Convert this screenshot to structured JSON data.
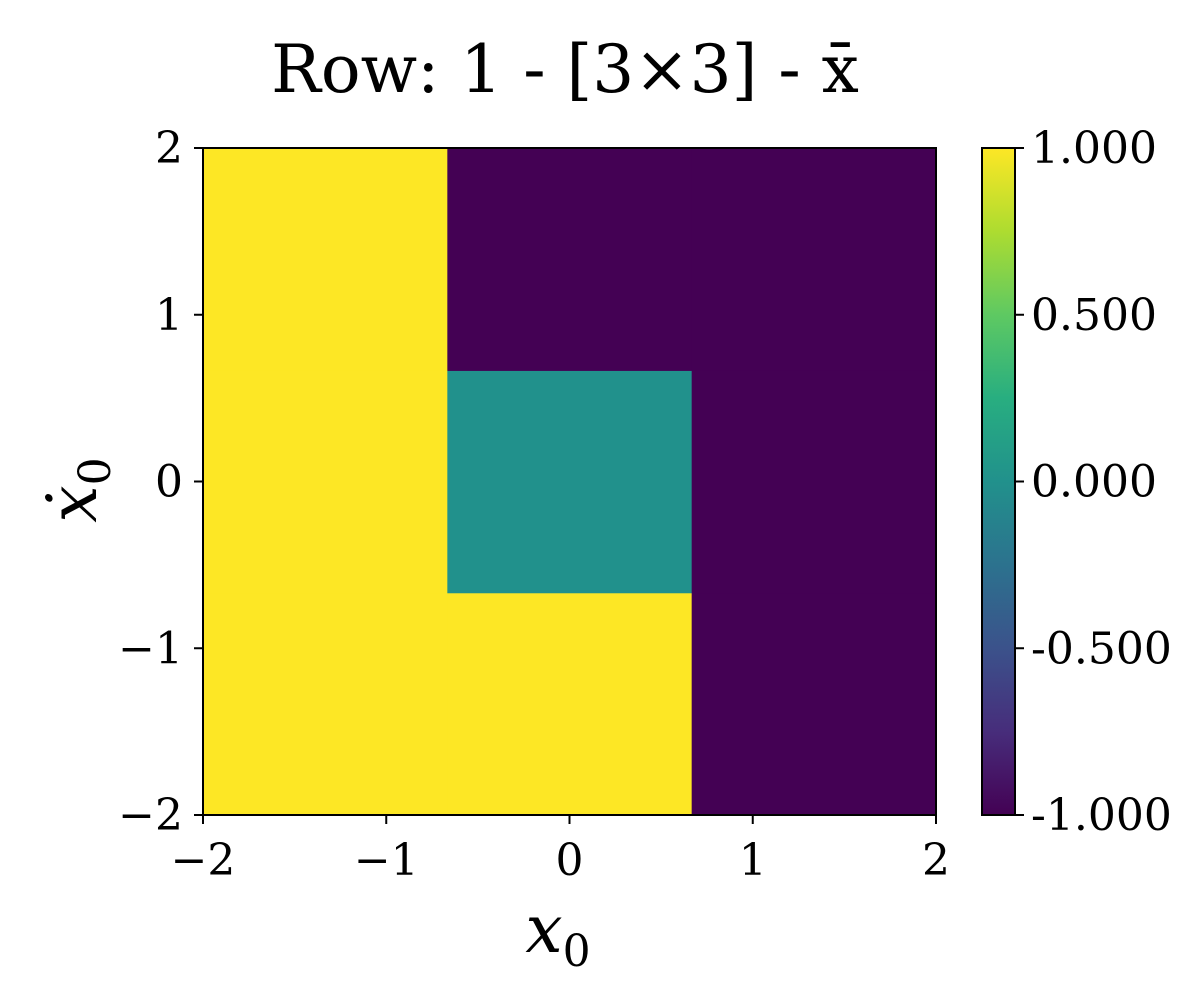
{
  "chart_data": {
    "type": "heatmap",
    "title": "Row: 1 - [3×3] - x̄",
    "xlabel": "x",
    "xlabel_sub": "0",
    "ylabel": "ẋ",
    "ylabel_sub": "0",
    "xlim": [
      -2,
      2
    ],
    "ylim": [
      -2,
      2
    ],
    "x_ticks": [
      -2,
      -1,
      0,
      1,
      2
    ],
    "y_ticks": [
      -2,
      -1,
      0,
      1,
      2
    ],
    "x_tick_labels": [
      "−2",
      "−1",
      "0",
      "1",
      "2"
    ],
    "y_tick_labels": [
      "−2",
      "−1",
      "0",
      "1",
      "2"
    ],
    "x_edges": [
      -2,
      -0.6667,
      0.6667,
      2
    ],
    "y_edges": [
      -2,
      -0.6667,
      0.6667,
      2
    ],
    "grid_rows_bottom_to_top": [
      [
        1,
        1,
        -1
      ],
      [
        1,
        0,
        -1
      ],
      [
        1,
        -1,
        -1
      ]
    ],
    "colorbar": {
      "vmin": -1,
      "vmax": 1,
      "ticks": [
        -1,
        -0.5,
        0,
        0.5,
        1
      ],
      "tick_labels": [
        "-1.000",
        "-0.500",
        "0.000",
        "0.500",
        "1.000"
      ],
      "colormap": "viridis"
    },
    "colors": {
      "min": "#440154",
      "mid": "#21918c",
      "max": "#fde725"
    }
  }
}
